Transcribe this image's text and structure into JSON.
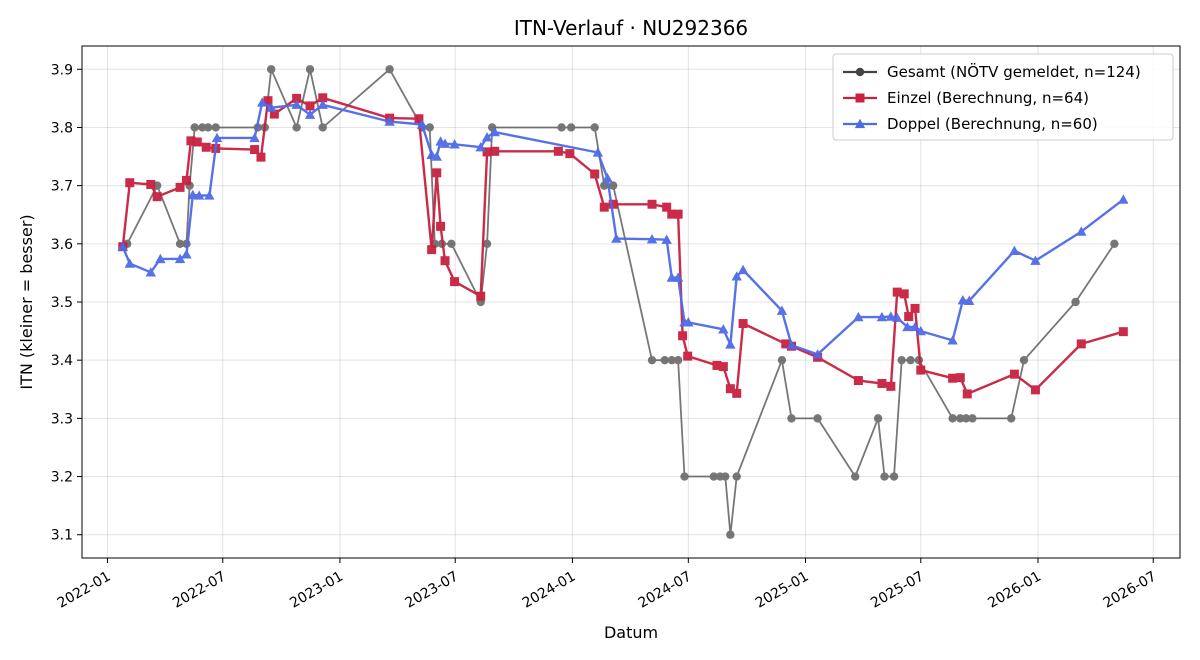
{
  "chart_data": {
    "type": "line",
    "title": "ITN-Verlauf · NU292366",
    "xlabel": "Datum",
    "ylabel": "ITN  (kleiner = besser)",
    "x_type": "date",
    "xlim": [
      "2021-11-22",
      "2026-08-12"
    ],
    "ylim": [
      3.06,
      3.94
    ],
    "x_ticks": [
      "2022-01-01",
      "2022-07-01",
      "2023-01-01",
      "2023-07-01",
      "2024-01-01",
      "2024-07-01",
      "2025-01-01",
      "2025-07-01",
      "2026-01-01",
      "2026-07-01"
    ],
    "x_tick_labels": [
      "2022-01",
      "2022-07",
      "2023-01",
      "2023-07",
      "2024-01",
      "2024-07",
      "2025-01",
      "2025-07",
      "2026-01",
      "2026-07"
    ],
    "y_ticks": [
      3.1,
      3.2,
      3.3,
      3.4,
      3.5,
      3.6,
      3.7,
      3.8,
      3.9
    ],
    "y_tick_labels": [
      "3.1",
      "3.2",
      "3.3",
      "3.4",
      "3.5",
      "3.6",
      "3.7",
      "3.8",
      "3.9"
    ],
    "grid": true,
    "legend_position": "top-right",
    "series": [
      {
        "name": "Gesamt (NÖTV gemeldet, n=124)",
        "color": "#444444",
        "marker": "circle",
        "points": [
          [
            "2022-02-01",
            3.6
          ],
          [
            "2022-03-20",
            3.7
          ],
          [
            "2022-04-25",
            3.6
          ],
          [
            "2022-05-05",
            3.6
          ],
          [
            "2022-05-10",
            3.7
          ],
          [
            "2022-05-18",
            3.8
          ],
          [
            "2022-05-30",
            3.8
          ],
          [
            "2022-06-08",
            3.8
          ],
          [
            "2022-06-20",
            3.8
          ],
          [
            "2022-08-25",
            3.8
          ],
          [
            "2022-09-05",
            3.8
          ],
          [
            "2022-09-15",
            3.9
          ],
          [
            "2022-10-25",
            3.8
          ],
          [
            "2022-11-15",
            3.9
          ],
          [
            "2022-12-05",
            3.8
          ],
          [
            "2023-03-20",
            3.9
          ],
          [
            "2023-05-10",
            3.8
          ],
          [
            "2023-05-22",
            3.8
          ],
          [
            "2023-05-30",
            3.6
          ],
          [
            "2023-06-10",
            3.6
          ],
          [
            "2023-06-25",
            3.6
          ],
          [
            "2023-08-10",
            3.5
          ],
          [
            "2023-08-20",
            3.6
          ],
          [
            "2023-08-28",
            3.8
          ],
          [
            "2023-12-15",
            3.8
          ],
          [
            "2023-12-30",
            3.8
          ],
          [
            "2024-02-05",
            3.8
          ],
          [
            "2024-02-20",
            3.7
          ],
          [
            "2024-03-05",
            3.7
          ],
          [
            "2024-05-05",
            3.4
          ],
          [
            "2024-05-25",
            3.4
          ],
          [
            "2024-06-05",
            3.4
          ],
          [
            "2024-06-15",
            3.4
          ],
          [
            "2024-06-25",
            3.2
          ],
          [
            "2024-08-10",
            3.2
          ],
          [
            "2024-08-20",
            3.2
          ],
          [
            "2024-08-28",
            3.2
          ],
          [
            "2024-09-05",
            3.1
          ],
          [
            "2024-09-15",
            3.2
          ],
          [
            "2024-11-25",
            3.4
          ],
          [
            "2024-12-10",
            3.3
          ],
          [
            "2025-01-20",
            3.3
          ],
          [
            "2025-03-20",
            3.2
          ],
          [
            "2025-04-25",
            3.3
          ],
          [
            "2025-05-05",
            3.2
          ],
          [
            "2025-05-20",
            3.2
          ],
          [
            "2025-06-01",
            3.4
          ],
          [
            "2025-06-15",
            3.4
          ],
          [
            "2025-06-28",
            3.4
          ],
          [
            "2025-08-20",
            3.3
          ],
          [
            "2025-09-01",
            3.3
          ],
          [
            "2025-09-10",
            3.3
          ],
          [
            "2025-09-20",
            3.3
          ],
          [
            "2025-11-20",
            3.3
          ],
          [
            "2025-12-10",
            3.4
          ],
          [
            "2026-03-01",
            3.5
          ],
          [
            "2026-05-01",
            3.6
          ]
        ]
      },
      {
        "name": "Einzel (Berechnung, n=64)",
        "color": "#c8203f",
        "marker": "square",
        "points": [
          [
            "2022-01-25",
            3.595
          ],
          [
            "2022-02-05",
            3.705
          ],
          [
            "2022-03-10",
            3.702
          ],
          [
            "2022-03-20",
            3.681
          ],
          [
            "2022-04-25",
            3.697
          ],
          [
            "2022-05-05",
            3.709
          ],
          [
            "2022-05-12",
            3.777
          ],
          [
            "2022-05-22",
            3.775
          ],
          [
            "2022-06-05",
            3.766
          ],
          [
            "2022-06-20",
            3.764
          ],
          [
            "2022-08-20",
            3.762
          ],
          [
            "2022-08-30",
            3.749
          ],
          [
            "2022-09-10",
            3.846
          ],
          [
            "2022-09-20",
            3.823
          ],
          [
            "2022-10-25",
            3.85
          ],
          [
            "2022-11-15",
            3.837
          ],
          [
            "2022-12-05",
            3.851
          ],
          [
            "2023-03-20",
            3.816
          ],
          [
            "2023-05-05",
            3.815
          ],
          [
            "2023-05-25",
            3.59
          ],
          [
            "2023-06-02",
            3.722
          ],
          [
            "2023-06-08",
            3.63
          ],
          [
            "2023-06-15",
            3.571
          ],
          [
            "2023-06-30",
            3.535
          ],
          [
            "2023-08-10",
            3.51
          ],
          [
            "2023-08-20",
            3.758
          ],
          [
            "2023-09-01",
            3.759
          ],
          [
            "2023-12-10",
            3.759
          ],
          [
            "2023-12-28",
            3.755
          ],
          [
            "2024-02-05",
            3.72
          ],
          [
            "2024-02-20",
            3.663
          ],
          [
            "2024-03-05",
            3.668
          ],
          [
            "2024-05-05",
            3.668
          ],
          [
            "2024-05-28",
            3.663
          ],
          [
            "2024-06-05",
            3.651
          ],
          [
            "2024-06-15",
            3.651
          ],
          [
            "2024-06-22",
            3.442
          ],
          [
            "2024-06-30",
            3.407
          ],
          [
            "2024-08-15",
            3.391
          ],
          [
            "2024-08-25",
            3.389
          ],
          [
            "2024-09-05",
            3.351
          ],
          [
            "2024-09-15",
            3.343
          ],
          [
            "2024-09-25",
            3.463
          ],
          [
            "2024-12-01",
            3.428
          ],
          [
            "2024-12-10",
            3.424
          ],
          [
            "2025-01-20",
            3.405
          ],
          [
            "2025-03-25",
            3.365
          ],
          [
            "2025-05-01",
            3.36
          ],
          [
            "2025-05-15",
            3.355
          ],
          [
            "2025-05-25",
            3.517
          ],
          [
            "2025-06-05",
            3.514
          ],
          [
            "2025-06-12",
            3.475
          ],
          [
            "2025-06-22",
            3.489
          ],
          [
            "2025-07-01",
            3.383
          ],
          [
            "2025-08-20",
            3.369
          ],
          [
            "2025-09-01",
            3.37
          ],
          [
            "2025-09-12",
            3.342
          ],
          [
            "2025-11-25",
            3.376
          ],
          [
            "2025-12-28",
            3.349
          ],
          [
            "2026-03-10",
            3.428
          ],
          [
            "2026-05-15",
            3.449
          ]
        ]
      },
      {
        "name": "Doppel (Berechnung, n=60)",
        "color": "#4f6ae8",
        "marker": "triangle",
        "points": [
          [
            "2022-01-25",
            3.595
          ],
          [
            "2022-02-05",
            3.566
          ],
          [
            "2022-03-10",
            3.551
          ],
          [
            "2022-03-25",
            3.574
          ],
          [
            "2022-04-25",
            3.574
          ],
          [
            "2022-05-05",
            3.582
          ],
          [
            "2022-05-15",
            3.684
          ],
          [
            "2022-05-25",
            3.683
          ],
          [
            "2022-06-10",
            3.683
          ],
          [
            "2022-06-22",
            3.782
          ],
          [
            "2022-08-20",
            3.782
          ],
          [
            "2022-09-01",
            3.843
          ],
          [
            "2022-09-15",
            3.834
          ],
          [
            "2022-10-25",
            3.839
          ],
          [
            "2022-11-15",
            3.822
          ],
          [
            "2022-12-05",
            3.839
          ],
          [
            "2023-03-20",
            3.81
          ],
          [
            "2023-05-10",
            3.805
          ],
          [
            "2023-05-25",
            3.753
          ],
          [
            "2023-06-02",
            3.75
          ],
          [
            "2023-06-08",
            3.776
          ],
          [
            "2023-06-15",
            3.772
          ],
          [
            "2023-06-30",
            3.771
          ],
          [
            "2023-08-10",
            3.766
          ],
          [
            "2023-08-20",
            3.783
          ],
          [
            "2023-09-01",
            3.792
          ],
          [
            "2024-02-10",
            3.757
          ],
          [
            "2024-02-25",
            3.713
          ],
          [
            "2024-03-10",
            3.609
          ],
          [
            "2024-05-05",
            3.608
          ],
          [
            "2024-05-28",
            3.607
          ],
          [
            "2024-06-05",
            3.542
          ],
          [
            "2024-06-15",
            3.542
          ],
          [
            "2024-06-25",
            3.465
          ],
          [
            "2024-07-01",
            3.465
          ],
          [
            "2024-08-25",
            3.453
          ],
          [
            "2024-09-05",
            3.427
          ],
          [
            "2024-09-15",
            3.544
          ],
          [
            "2024-09-25",
            3.555
          ],
          [
            "2024-11-25",
            3.485
          ],
          [
            "2024-12-10",
            3.426
          ],
          [
            "2025-01-20",
            3.41
          ],
          [
            "2025-03-25",
            3.474
          ],
          [
            "2025-05-01",
            3.474
          ],
          [
            "2025-05-15",
            3.475
          ],
          [
            "2025-05-25",
            3.473
          ],
          [
            "2025-06-10",
            3.457
          ],
          [
            "2025-06-22",
            3.457
          ],
          [
            "2025-07-01",
            3.45
          ],
          [
            "2025-08-20",
            3.434
          ],
          [
            "2025-09-05",
            3.503
          ],
          [
            "2025-09-15",
            3.502
          ],
          [
            "2025-11-25",
            3.588
          ],
          [
            "2025-12-28",
            3.571
          ],
          [
            "2026-03-10",
            3.621
          ],
          [
            "2026-05-15",
            3.676
          ]
        ]
      }
    ]
  }
}
